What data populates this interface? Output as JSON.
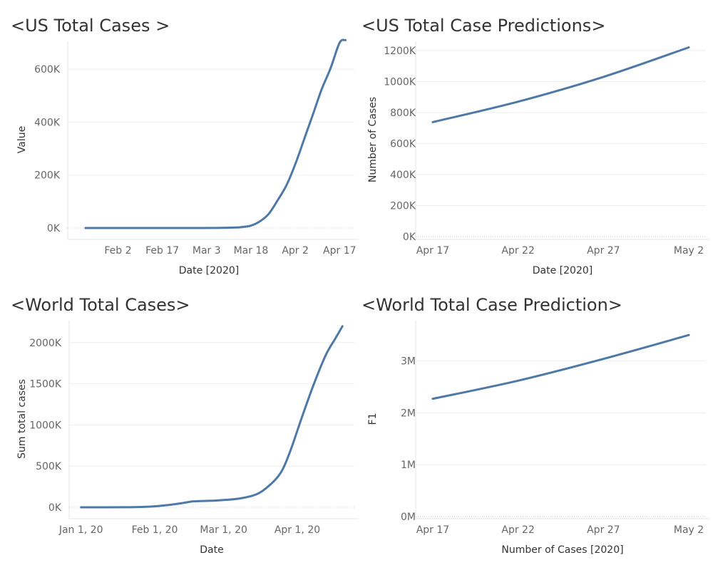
{
  "colors": {
    "line": "#4e79a7",
    "title": "#333333",
    "tick": "#666666"
  },
  "chart_data": [
    {
      "type": "line",
      "title": "<US Total Cases >",
      "xlabel": "Date [2020]",
      "ylabel": "Value",
      "x_ticks": [
        "Feb 2",
        "Feb 17",
        "Mar 3",
        "Mar 18",
        "Apr 2",
        "Apr 17"
      ],
      "y_ticks": [
        "0K",
        "200K",
        "400K",
        "600K"
      ],
      "ylim": [
        0,
        700000
      ],
      "series": [
        {
          "x": [
            "2020-01-22",
            "2020-02-01",
            "2020-02-15",
            "2020-03-01",
            "2020-03-08",
            "2020-03-12",
            "2020-03-15",
            "2020-03-18",
            "2020-03-21",
            "2020-03-24",
            "2020-03-27",
            "2020-03-30",
            "2020-04-02",
            "2020-04-05",
            "2020-04-08",
            "2020-04-11",
            "2020-04-14",
            "2020-04-17",
            "2020-04-19"
          ],
          "values": [
            1,
            8,
            15,
            75,
            500,
            1600,
            3500,
            9000,
            25000,
            53000,
            104000,
            161000,
            241000,
            335000,
            430000,
            526000,
            605000,
            700000,
            710000
          ]
        }
      ]
    },
    {
      "type": "line",
      "title": "<US Total Case Predictions>",
      "xlabel": "Date [2020]",
      "ylabel": "Number of Cases",
      "x_ticks": [
        "Apr 17",
        "Apr 22",
        "Apr 27",
        "May 2"
      ],
      "y_ticks": [
        "0K",
        "200K",
        "400K",
        "600K",
        "800K",
        "1000K",
        "1200K"
      ],
      "ylim": [
        0,
        1250000
      ],
      "series": [
        {
          "x": [
            "2020-04-17",
            "2020-04-22",
            "2020-04-27",
            "2020-05-02"
          ],
          "values": [
            738000,
            870000,
            1030000,
            1220000
          ]
        }
      ]
    },
    {
      "type": "line",
      "title": "<World Total Cases>",
      "xlabel": "Date",
      "ylabel": "Sum total cases",
      "x_ticks": [
        "Jan 1, 20",
        "Feb 1, 20",
        "Mar 1, 20",
        "Apr 1, 20"
      ],
      "y_ticks": [
        "0K",
        "500K",
        "1000K",
        "1500K",
        "2000K"
      ],
      "ylim": [
        0,
        2250000
      ],
      "series": [
        {
          "x": [
            "2020-01-01",
            "2020-01-20",
            "2020-02-01",
            "2020-02-10",
            "2020-02-16",
            "2020-02-18",
            "2020-02-25",
            "2020-03-01",
            "2020-03-08",
            "2020-03-15",
            "2020-03-20",
            "2020-03-25",
            "2020-03-29",
            "2020-04-03",
            "2020-04-08",
            "2020-04-13",
            "2020-04-17",
            "2020-04-20"
          ],
          "values": [
            0,
            1000,
            12000,
            40000,
            68000,
            73000,
            80000,
            88000,
            108000,
            160000,
            260000,
            420000,
            680000,
            1100000,
            1500000,
            1850000,
            2050000,
            2200000
          ]
        }
      ]
    },
    {
      "type": "line",
      "title": "<World Total Case Prediction>",
      "xlabel": "Number of Cases [2020]",
      "ylabel": "F1",
      "x_ticks": [
        "Apr 17",
        "Apr 22",
        "Apr 27",
        "May 2"
      ],
      "y_ticks": [
        "0M",
        "1M",
        "2M",
        "3M"
      ],
      "ylim": [
        0,
        3750000
      ],
      "series": [
        {
          "x": [
            "2020-04-17",
            "2020-04-22",
            "2020-04-27",
            "2020-05-02"
          ],
          "values": [
            2270000,
            2620000,
            3040000,
            3500000
          ]
        }
      ]
    }
  ]
}
